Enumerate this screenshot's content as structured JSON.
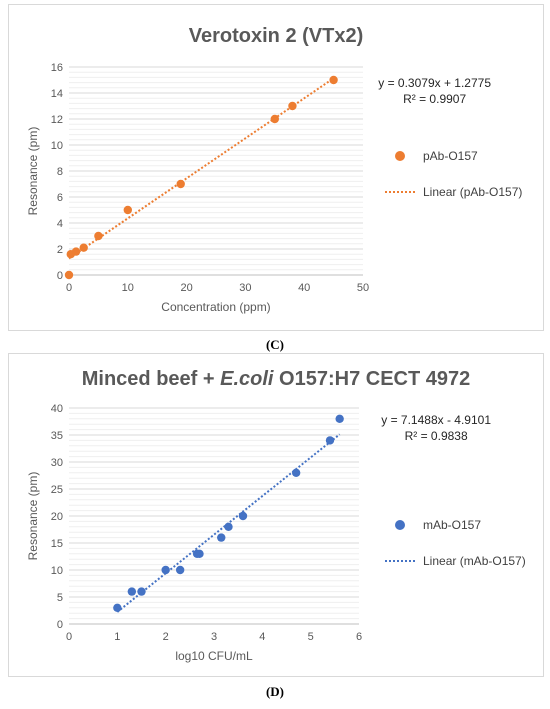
{
  "chart_data": [
    {
      "type": "scatter",
      "title": "Verotoxin 2 (VTx2)",
      "xlabel": "Concentration (ppm)",
      "ylabel": "Resonance (pm)",
      "xlim": [
        0,
        50
      ],
      "ylim": [
        0,
        16
      ],
      "xticks": [
        "0",
        "10",
        "20",
        "30",
        "40",
        "50"
      ],
      "yticks": [
        "0",
        "2",
        "4",
        "6",
        "8",
        "10",
        "12",
        "14",
        "16"
      ],
      "grid": true,
      "legend_placement": "right",
      "series": [
        {
          "name": "pAb-O157",
          "color": "#ed7d31",
          "x": [
            0,
            0.3,
            1.2,
            2.5,
            5,
            10,
            19,
            35,
            38,
            45
          ],
          "y": [
            0,
            1.6,
            1.8,
            2.1,
            3,
            5,
            7,
            12,
            13,
            15
          ]
        }
      ],
      "trendline": {
        "name": "Linear (pAb-O157)",
        "slope": 0.3079,
        "intercept": 1.2775,
        "x_range": [
          0,
          45
        ]
      },
      "equation": "y = 0.3079x + 1.2775",
      "r_squared": "R² = 0.9907",
      "caption": "(C)"
    },
    {
      "type": "scatter",
      "title_plain": "Minced beef + ",
      "title_italic": "E.coli",
      "title_rest": " O157:H7 CECT 4972",
      "xlabel": "log10 CFU/mL",
      "ylabel": "Resonance (pm)",
      "xlim": [
        0,
        6
      ],
      "ylim": [
        0,
        40
      ],
      "xticks": [
        "0",
        "1",
        "2",
        "3",
        "4",
        "5",
        "6"
      ],
      "yticks": [
        "0",
        "5",
        "10",
        "15",
        "20",
        "25",
        "30",
        "35",
        "40"
      ],
      "grid": true,
      "legend_placement": "right",
      "series": [
        {
          "name": "mAb-O157",
          "color": "#4472c4",
          "x": [
            1.0,
            1.3,
            1.5,
            2.0,
            2.3,
            2.65,
            2.7,
            3.15,
            3.3,
            3.6,
            4.7,
            5.4,
            5.6
          ],
          "y": [
            3,
            6,
            6,
            10,
            10,
            13,
            13,
            16,
            18,
            20,
            28,
            34,
            38
          ]
        }
      ],
      "trendline": {
        "name": "Linear (mAb-O157)",
        "slope": 7.1488,
        "intercept": -4.9101,
        "x_range": [
          1.0,
          5.6
        ]
      },
      "equation": "y = 7.1488x - 4.9101",
      "r_squared": "R² = 0.9838",
      "caption": "(D)"
    }
  ]
}
